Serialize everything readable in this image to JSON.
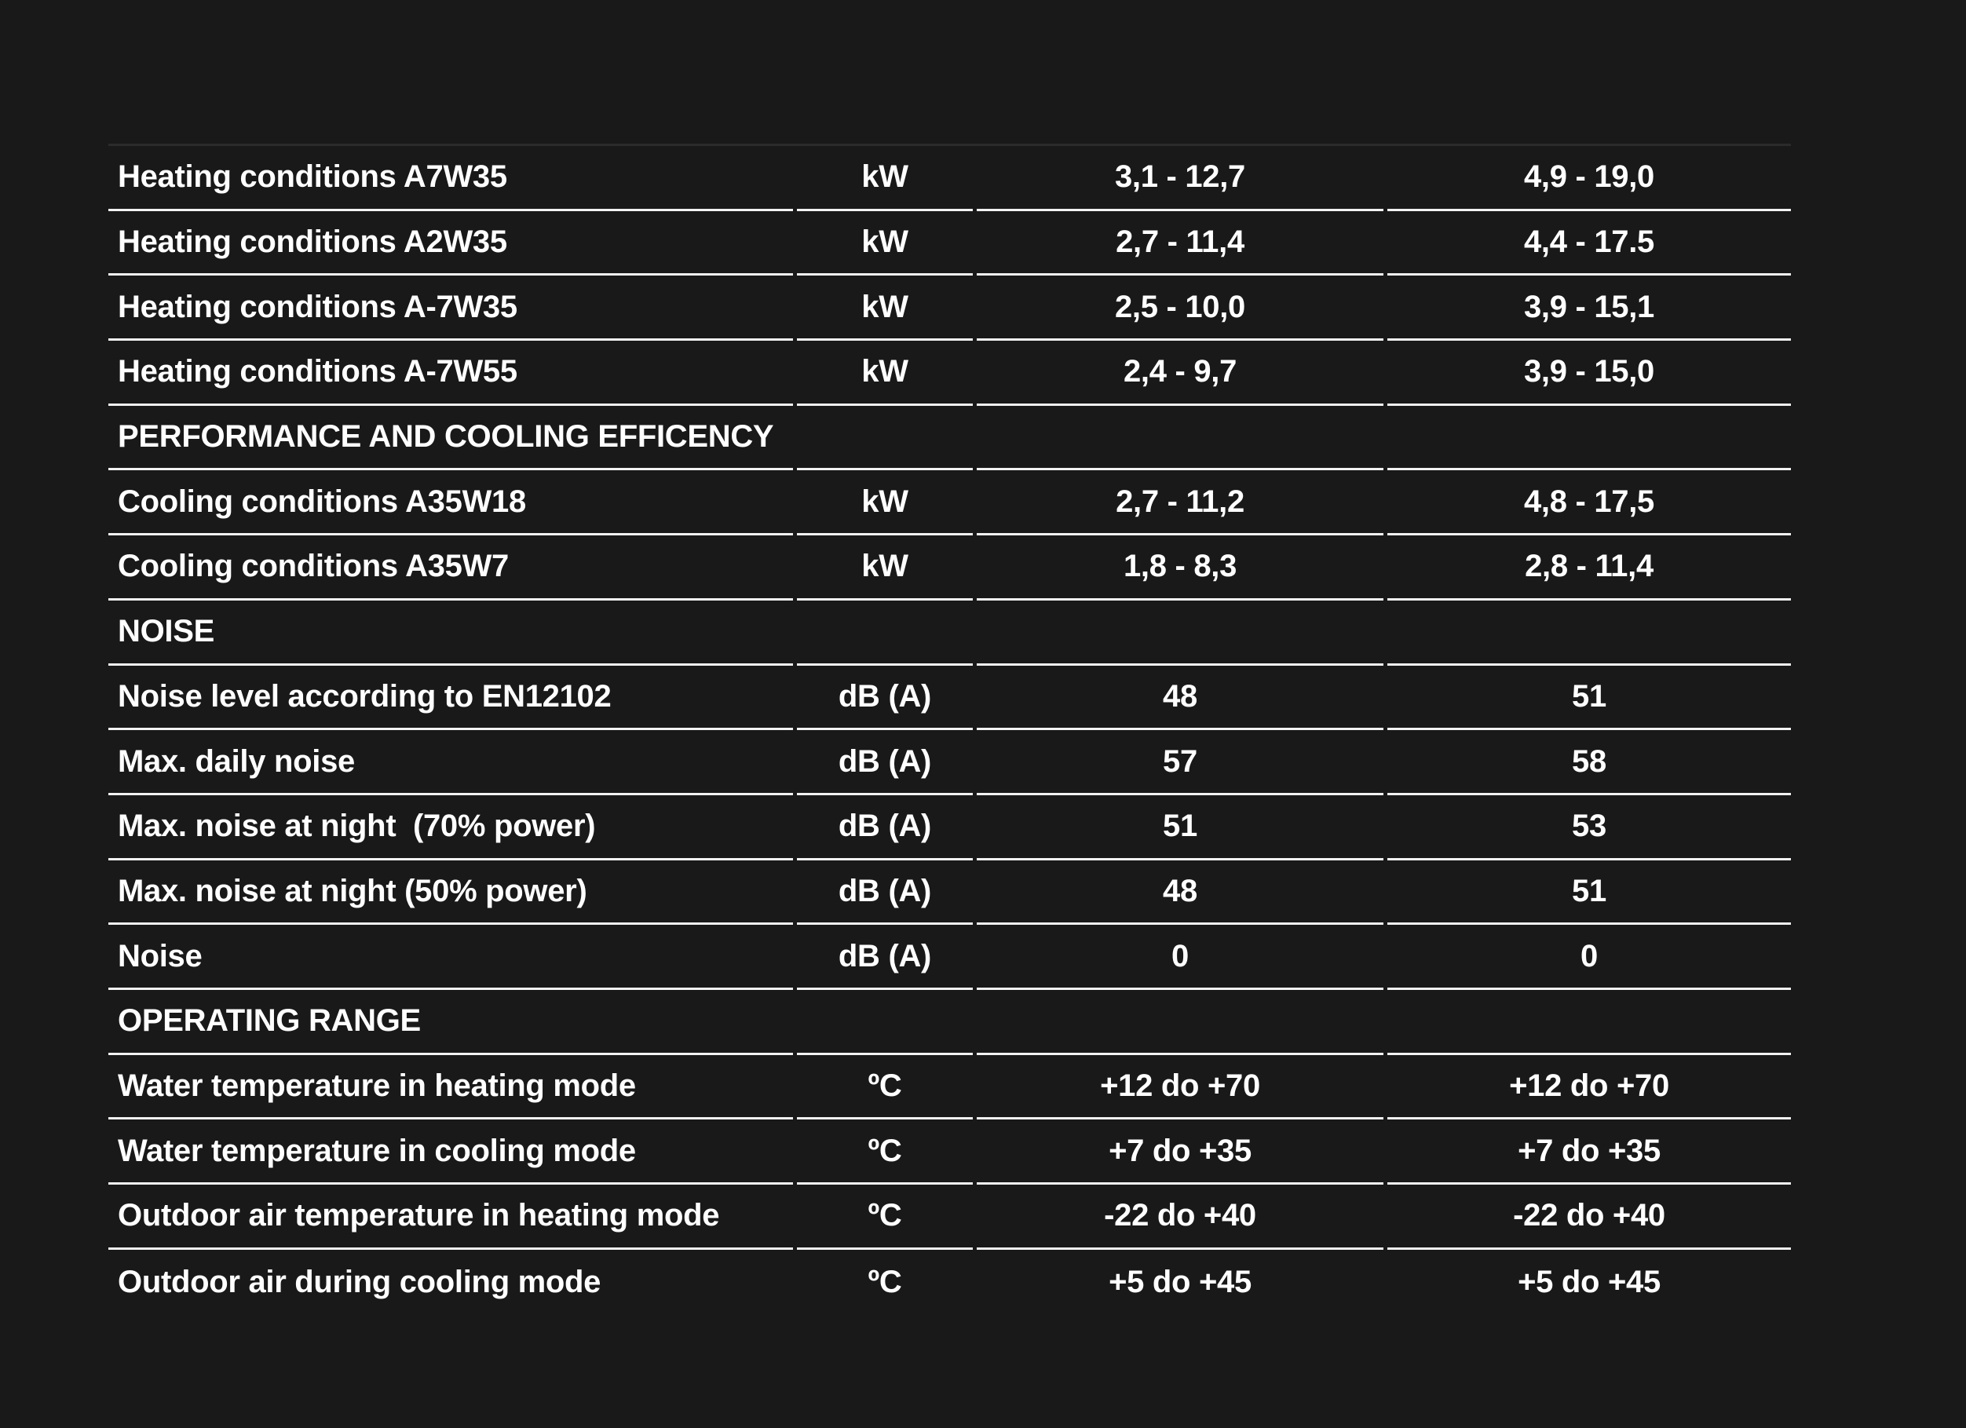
{
  "page": {
    "background_color": "#191919",
    "text_color": "#ffffff",
    "divider_color": "#f2f2f2",
    "top_rule_color": "#2b2b2b"
  },
  "table": {
    "rows": [
      {
        "type": "data",
        "label": "Heating conditions A7W35",
        "unit": "kW",
        "value1": "3,1 - 12,7",
        "value2": "4,9 - 19,0"
      },
      {
        "type": "data",
        "label": "Heating conditions A2W35",
        "unit": "kW",
        "value1": "2,7 - 11,4",
        "value2": "4,4 - 17.5"
      },
      {
        "type": "data",
        "label": "Heating conditions A-7W35",
        "unit": "kW",
        "value1": "2,5 - 10,0",
        "value2": "3,9 - 15,1"
      },
      {
        "type": "data",
        "label": "Heating conditions A-7W55",
        "unit": "kW",
        "value1": "2,4 - 9,7",
        "value2": "3,9 - 15,0"
      },
      {
        "type": "section",
        "label": "PERFORMANCE AND COOLING EFFICENCY"
      },
      {
        "type": "data",
        "label": "Cooling conditions A35W18",
        "unit": "kW",
        "value1": "2,7 - 11,2",
        "value2": "4,8 - 17,5"
      },
      {
        "type": "data",
        "label": "Cooling conditions A35W7",
        "unit": "kW",
        "value1": "1,8 - 8,3",
        "value2": "2,8 - 11,4"
      },
      {
        "type": "section",
        "label": "NOISE"
      },
      {
        "type": "data",
        "label": "Noise level according to EN12102",
        "unit": "dB (A)",
        "value1": "48",
        "value2": "51"
      },
      {
        "type": "data",
        "label": "Max. daily noise",
        "unit": "dB (A)",
        "value1": "57",
        "value2": "58"
      },
      {
        "type": "data",
        "label": "Max. noise at night  (70% power)",
        "unit": "dB (A)",
        "value1": "51",
        "value2": "53"
      },
      {
        "type": "data",
        "label": "Max. noise at night (50% power)",
        "unit": "dB (A)",
        "value1": "48",
        "value2": "51"
      },
      {
        "type": "data",
        "label": "Noise",
        "unit": "dB (A)",
        "value1": "0",
        "value2": "0"
      },
      {
        "type": "section",
        "label": "OPERATING RANGE"
      },
      {
        "type": "data",
        "label": "Water temperature in heating mode",
        "unit": "ºC",
        "value1": "+12 do +70",
        "value2": "+12 do +70"
      },
      {
        "type": "data",
        "label": "Water temperature in cooling mode",
        "unit": "ºC",
        "value1": "+7 do +35",
        "value2": "+7 do +35"
      },
      {
        "type": "data",
        "label": "Outdoor air temperature in heating mode",
        "unit": "ºC",
        "value1": "-22 do +40",
        "value2": "-22 do +40"
      },
      {
        "type": "data",
        "label": "Outdoor air during cooling mode",
        "unit": "ºC",
        "value1": "+5 do +45",
        "value2": "+5 do +45"
      }
    ]
  }
}
